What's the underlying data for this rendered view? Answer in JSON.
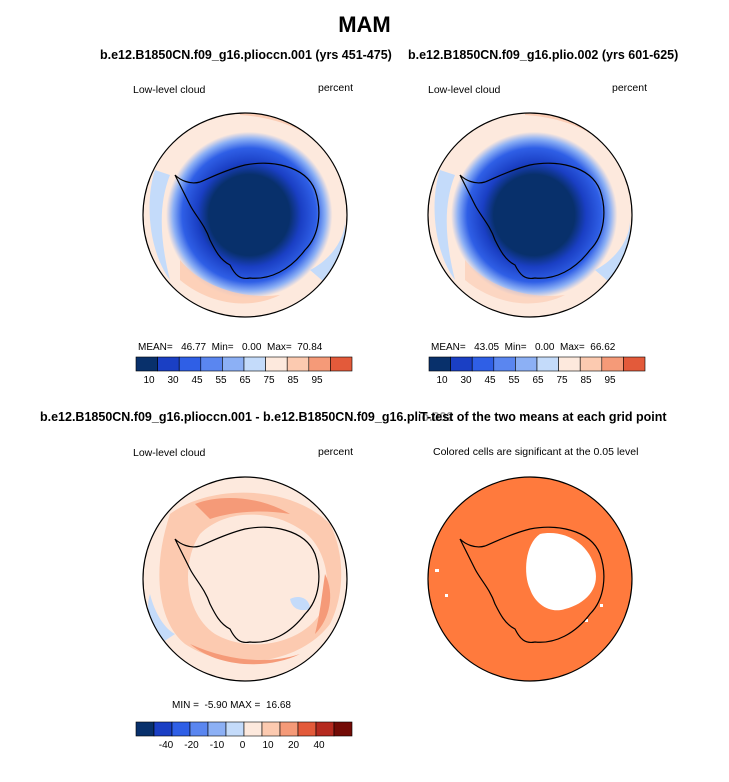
{
  "figure": {
    "title": "MAM",
    "colormap_10": [
      "#08306b",
      "#1a3fc4",
      "#2f5fe6",
      "#5a86f0",
      "#8cb0f5",
      "#c4dbfa",
      "#fde9dd",
      "#fccab0",
      "#f59a78",
      "#e35a3a",
      "#b52a1f",
      "#730b06"
    ],
    "colormap_diff": [
      "#08306b",
      "#1a3fc4",
      "#2f5fe6",
      "#5a86f0",
      "#8cb0f5",
      "#c4dbfa",
      "#fde9dd",
      "#fccab0",
      "#f59a78",
      "#e35a3a",
      "#b52a1f",
      "#730b06"
    ],
    "ttest_color": "#ff7a3d"
  },
  "panels": {
    "p1": {
      "title": "b.e12.B1850CN.f09_g16.plioccn.001 (yrs 451-475)",
      "left_label": "Low-level cloud",
      "right_label": "percent",
      "stats": {
        "mean_label": "MEAN=",
        "mean": "46.77",
        "min_label": "Min=",
        "min": "0.00",
        "max_label": "Max=",
        "max": "70.84"
      },
      "colorbar_labels": [
        "10",
        "30",
        "45",
        "55",
        "65",
        "75",
        "85",
        "95"
      ]
    },
    "p2": {
      "title": "b.e12.B1850CN.f09_g16.plio.002 (yrs 601-625)",
      "left_label": "Low-level cloud",
      "right_label": "percent",
      "stats": {
        "mean_label": "MEAN=",
        "mean": "43.05",
        "min_label": "Min=",
        "min": "0.00",
        "max_label": "Max=",
        "max": "66.62"
      },
      "colorbar_labels": [
        "10",
        "30",
        "45",
        "55",
        "65",
        "75",
        "85",
        "95"
      ]
    },
    "p3": {
      "title": "b.e12.B1850CN.f09_g16.plioccn.001 - b.e12.B1850CN.f09_g16.plio.002",
      "left_label": "Low-level cloud",
      "right_label": "percent",
      "stats": {
        "min_label": "MIN =",
        "min": "-5.90",
        "max_label": "MAX =",
        "max": "16.68"
      },
      "colorbar_labels": [
        "-40",
        "-20",
        "-10",
        "0",
        "10",
        "20",
        "40"
      ]
    },
    "p4": {
      "title": "T-test of the two means at each grid point",
      "subtitle": "Colored cells are significant at the 0.05 level"
    }
  },
  "chart_data": [
    {
      "type": "heatmap",
      "title": "b.e12.B1850CN.f09_g16.plioccn.001 (yrs 451-475)",
      "variable": "Low-level cloud",
      "units": "percent",
      "mean": 46.77,
      "min": 0.0,
      "max": 70.84,
      "levels": [
        10,
        30,
        45,
        55,
        65,
        75,
        85,
        95
      ]
    },
    {
      "type": "heatmap",
      "title": "b.e12.B1850CN.f09_g16.plio.002 (yrs 601-625)",
      "variable": "Low-level cloud",
      "units": "percent",
      "mean": 43.05,
      "min": 0.0,
      "max": 66.62,
      "levels": [
        10,
        30,
        45,
        55,
        65,
        75,
        85,
        95
      ]
    },
    {
      "type": "heatmap",
      "title": "b.e12.B1850CN.f09_g16.plioccn.001 - b.e12.B1850CN.f09_g16.plio.002",
      "variable": "Low-level cloud",
      "units": "percent",
      "min": -5.9,
      "max": 16.68,
      "levels": [
        -40,
        -20,
        -10,
        0,
        10,
        20,
        40
      ]
    },
    {
      "type": "heatmap",
      "title": "T-test of the two means at each grid point",
      "note": "Colored cells are significant at the 0.05 level"
    }
  ]
}
